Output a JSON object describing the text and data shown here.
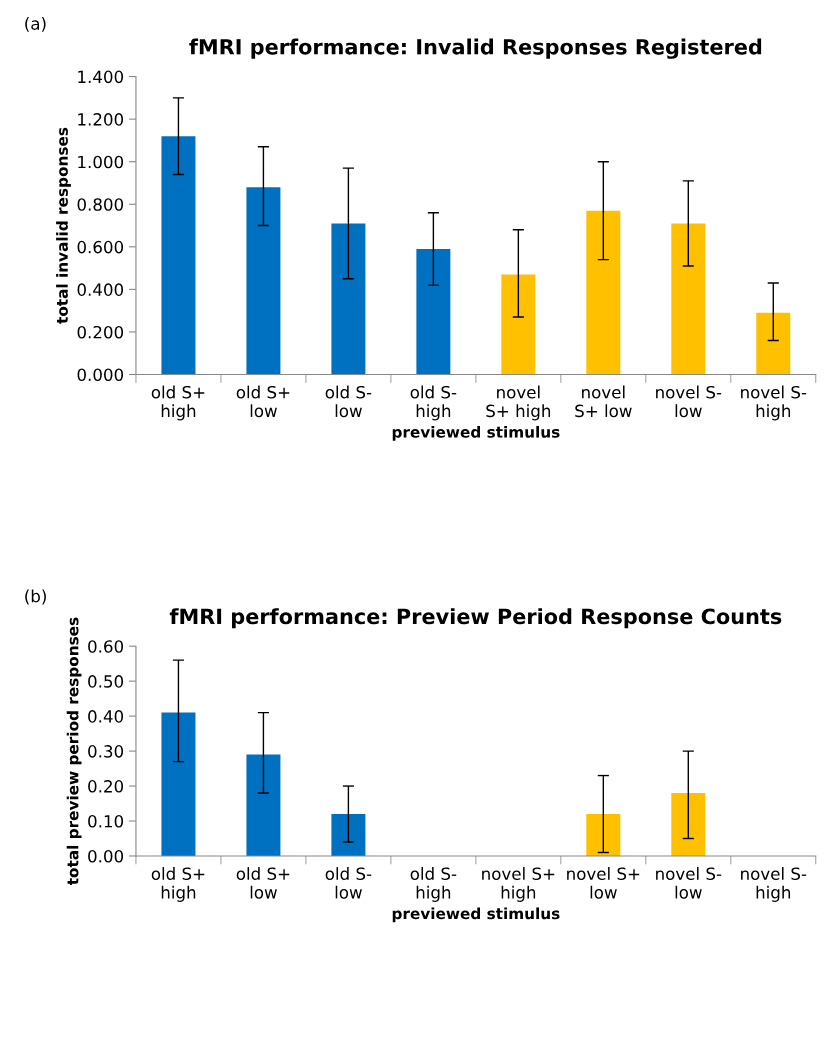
{
  "chart_data": [
    {
      "type": "bar",
      "title": "fMRI performance: Invalid Responses Registered",
      "xlabel": "previewed stimulus",
      "ylabel": "total invalid responses",
      "annotations": [
        "(a)"
      ],
      "categories": [
        "old S+\nhigh",
        "old S+\nlow",
        "old S-\nlow",
        "old S-\nhigh",
        "novel\nS+ high",
        "novel\nS+ low",
        "novel S-\nlow",
        "novel S-\nhigh"
      ],
      "values": [
        1.12,
        0.88,
        0.71,
        0.59,
        0.47,
        0.77,
        0.71,
        0.29
      ],
      "errors": [
        [
          0.94,
          1.3
        ],
        [
          0.7,
          1.07
        ],
        [
          0.45,
          0.97
        ],
        [
          0.42,
          0.76
        ],
        [
          0.27,
          0.68
        ],
        [
          0.54,
          1.0
        ],
        [
          0.51,
          0.91
        ],
        [
          0.16,
          0.43
        ]
      ],
      "colors": [
        "#0070c0",
        "#0070c0",
        "#0070c0",
        "#0070c0",
        "#ffc000",
        "#ffc000",
        "#ffc000",
        "#ffc000"
      ],
      "ylim": [
        0,
        1.4
      ],
      "yticks": [
        {
          "value": 0,
          "label": "0.000"
        },
        {
          "value": 0.2,
          "label": "0.200"
        },
        {
          "value": 0.4,
          "label": "0.400"
        },
        {
          "value": 0.6,
          "label": "0.600"
        },
        {
          "value": 0.8,
          "label": "0.800"
        },
        {
          "value": 1.0,
          "label": "1.000"
        },
        {
          "value": 1.2,
          "label": "1.200"
        },
        {
          "value": 1.4,
          "label": "1.400"
        }
      ]
    },
    {
      "type": "bar",
      "title": "fMRI performance: Preview Period Response Counts",
      "xlabel": "previewed stimulus",
      "ylabel": "total preview period responses",
      "annotations": [
        "(b)"
      ],
      "categories": [
        "old S+\nhigh",
        "old S+\nlow",
        "old S-\nlow",
        "old S-\nhigh",
        "novel S+\nhigh",
        "novel S+\nlow",
        "novel S-\nlow",
        "novel S-\nhigh"
      ],
      "values": [
        0.41,
        0.29,
        0.12,
        0,
        0,
        0.12,
        0.18,
        0
      ],
      "errors": [
        [
          0.27,
          0.56
        ],
        [
          0.18,
          0.41
        ],
        [
          0.04,
          0.2
        ],
        null,
        null,
        [
          0.01,
          0.23
        ],
        [
          0.05,
          0.3
        ],
        null
      ],
      "colors": [
        "#0070c0",
        "#0070c0",
        "#0070c0",
        "#0070c0",
        "#ffc000",
        "#ffc000",
        "#ffc000",
        "#ffc000"
      ],
      "ylim": [
        0,
        0.6
      ],
      "yticks": [
        {
          "value": 0,
          "label": "0.00"
        },
        {
          "value": 0.1,
          "label": "0.10"
        },
        {
          "value": 0.2,
          "label": "0.20"
        },
        {
          "value": 0.3,
          "label": "0.30"
        },
        {
          "value": 0.4,
          "label": "0.40"
        },
        {
          "value": 0.5,
          "label": "0.50"
        },
        {
          "value": 0.6,
          "label": "0.60"
        }
      ]
    }
  ]
}
